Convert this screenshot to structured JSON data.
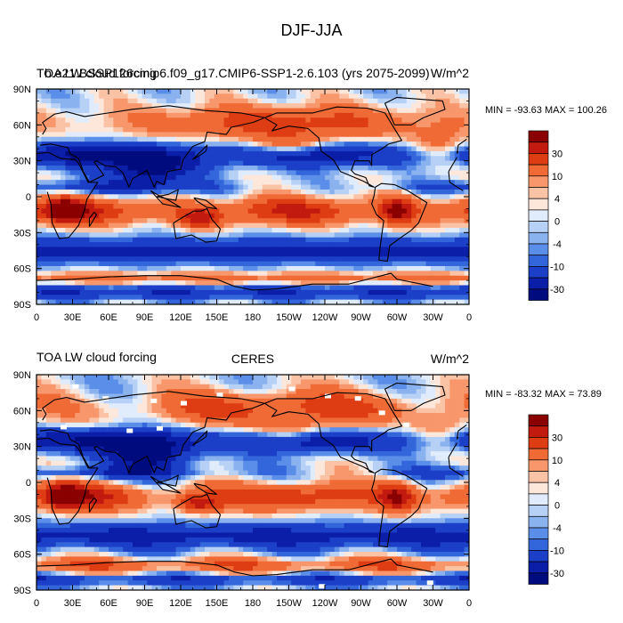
{
  "figure": {
    "title": "DJF-JJA"
  },
  "panels": [
    {
      "id": "model",
      "left_title": "TOA LW cloud forcing",
      "overlap_title": "b.e21.BSSP126cmip6.f09_g17.CMIP6-SSP1-2.6.103 (yrs 2075-2099)",
      "center_title": "",
      "units": "W/m^2",
      "stats": "MIN = -93.63 MAX = 100.26",
      "has_missing": false
    },
    {
      "id": "obs",
      "left_title": "TOA LW cloud forcing",
      "overlap_title": "",
      "center_title": "CERES",
      "units": "W/m^2",
      "stats": "MIN = -83.32 MAX =  73.89",
      "has_missing": true
    }
  ],
  "axes": {
    "lat_labels": [
      "90N",
      "60N",
      "30N",
      "0",
      "30S",
      "60S",
      "90S"
    ],
    "lon_labels": [
      "0",
      "30E",
      "60E",
      "90E",
      "120E",
      "150E",
      "180",
      "150W",
      "120W",
      "90W",
      "60W",
      "30W",
      "0"
    ]
  },
  "colorbar": {
    "labels": [
      "30",
      "10",
      "4",
      "0",
      "-4",
      "-10",
      "-30"
    ],
    "colors": [
      "#8b0000",
      "#c21a0e",
      "#de3c13",
      "#ef6a35",
      "#f7976b",
      "#fbc3a6",
      "#fde6da",
      "#e0ecfb",
      "#b7d0f5",
      "#8ab2ee",
      "#5b8ee8",
      "#3466db",
      "#1c3fc7",
      "#0b1ea8",
      "#000c7e"
    ]
  }
}
